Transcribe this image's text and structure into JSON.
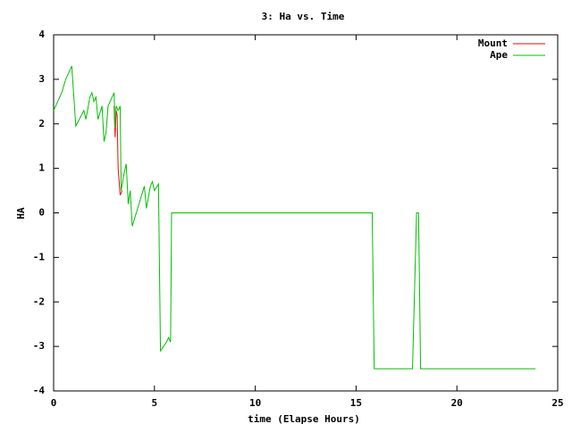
{
  "chart_data": {
    "type": "line",
    "title": "3: Ha vs. Time",
    "xlabel": "time (Elapse Hours)",
    "ylabel": "HA",
    "xlim": [
      0,
      25
    ],
    "ylim": [
      -4,
      4
    ],
    "xticks": [
      0,
      5,
      10,
      15,
      20,
      25
    ],
    "yticks": [
      -4,
      -3,
      -2,
      -1,
      0,
      1,
      2,
      3,
      4
    ],
    "legend": "top-right",
    "series": [
      {
        "name": "Mount",
        "color": "#ff0000",
        "x": [
          3.0,
          3.05,
          3.1,
          3.15,
          3.2,
          3.3,
          3.4
        ],
        "values": [
          2.4,
          1.7,
          2.3,
          2.2,
          1.0,
          0.4,
          0.5
        ]
      },
      {
        "name": "Ape",
        "color": "#00c000",
        "x": [
          0,
          0.4,
          0.6,
          0.9,
          1.1,
          1.5,
          1.6,
          1.8,
          1.9,
          2.0,
          2.1,
          2.2,
          2.4,
          2.5,
          2.6,
          2.7,
          2.9,
          3.0,
          3.05,
          3.1,
          3.2,
          3.3,
          3.35,
          3.5,
          3.6,
          3.7,
          3.8,
          3.9,
          4.1,
          4.3,
          4.5,
          4.6,
          4.8,
          4.9,
          5.0,
          5.2,
          5.3,
          5.6,
          5.7,
          5.8,
          5.85,
          15.8,
          15.9,
          17.8,
          18.0,
          18.1,
          18.2,
          23.9
        ],
        "values": [
          2.3,
          2.7,
          3.0,
          3.3,
          1.95,
          2.3,
          2.1,
          2.6,
          2.7,
          2.5,
          2.6,
          2.1,
          2.4,
          1.6,
          1.8,
          2.4,
          2.6,
          2.7,
          1.9,
          2.4,
          2.3,
          2.4,
          0.5,
          0.9,
          1.1,
          0.2,
          0.5,
          -0.3,
          0,
          0.3,
          0.6,
          0.1,
          0.6,
          0.7,
          0.5,
          0.65,
          -3.1,
          -2.9,
          -2.8,
          -2.9,
          0,
          0,
          -3.5,
          -3.5,
          0,
          0,
          -3.5,
          -3.5
        ]
      }
    ]
  }
}
